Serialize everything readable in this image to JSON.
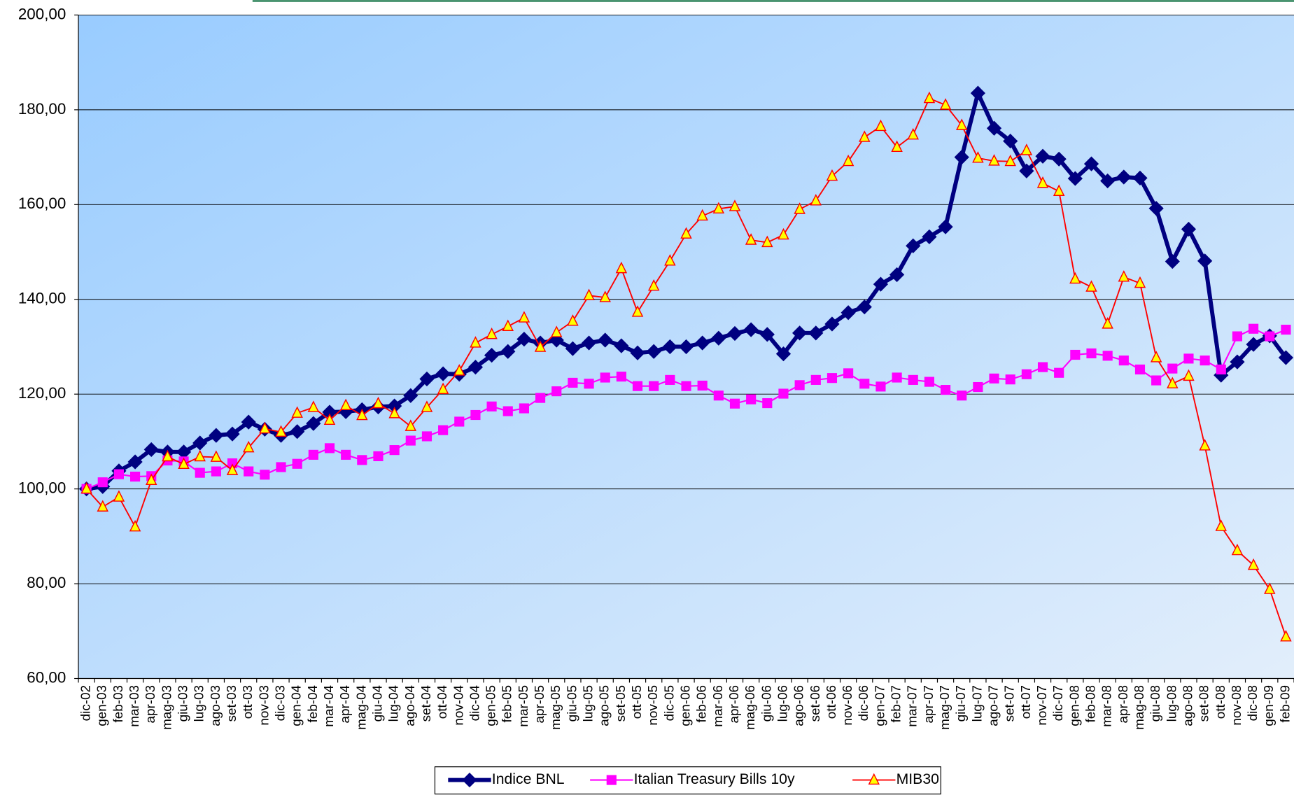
{
  "chart_data": {
    "type": "line",
    "categories": [
      "dic-02",
      "gen-03",
      "feb-03",
      "mar-03",
      "apr-03",
      "mag-03",
      "giu-03",
      "lug-03",
      "ago-03",
      "set-03",
      "ott-03",
      "nov-03",
      "dic-03",
      "gen-04",
      "feb-04",
      "mar-04",
      "apr-04",
      "mag-04",
      "giu-04",
      "lug-04",
      "ago-04",
      "set-04",
      "ott-04",
      "nov-04",
      "dic-04",
      "gen-05",
      "feb-05",
      "mar-05",
      "apr-05",
      "mag-05",
      "giu-05",
      "lug-05",
      "ago-05",
      "set-05",
      "ott-05",
      "nov-05",
      "dic-05",
      "gen-06",
      "feb-06",
      "mar-06",
      "apr-06",
      "mag-06",
      "giu-06",
      "lug-06",
      "ago-06",
      "set-06",
      "ott-06",
      "nov-06",
      "dic-06",
      "gen-07",
      "feb-07",
      "mar-07",
      "apr-07",
      "mag-07",
      "giu-07",
      "lug-07",
      "ago-07",
      "set-07",
      "ott-07",
      "nov-07",
      "dic-07",
      "gen-08",
      "feb-08",
      "mar-08",
      "apr-08",
      "mag-08",
      "giu-08",
      "lug-08",
      "ago-08",
      "set-08",
      "ott-08",
      "nov-08",
      "dic-08",
      "gen-09",
      "feb-09"
    ],
    "series": [
      {
        "name": "Indice BNL",
        "color": "#000080",
        "marker": "diamond",
        "values": [
          100,
          100.5,
          103.8,
          105.7,
          108.3,
          107.8,
          107.8,
          109.7,
          111.3,
          111.6,
          114.1,
          112.6,
          111.3,
          112.1,
          113.8,
          116.2,
          116.3,
          116.7,
          117.3,
          117.5,
          119.7,
          123.2,
          124.3,
          124.2,
          125.7,
          128.2,
          129.0,
          131.6,
          130.8,
          131.4,
          129.6,
          130.8,
          131.4,
          130.2,
          128.7,
          129.0,
          130.0,
          130.0,
          130.8,
          131.8,
          132.8,
          133.6,
          132.6,
          128.5,
          132.9,
          132.9,
          134.8,
          137.2,
          138.4,
          143.2,
          145.2,
          151.3,
          153.2,
          155.3,
          170.0,
          183.5,
          176.1,
          173.4,
          167.1,
          170.2,
          169.6,
          165.5,
          168.6,
          165.0,
          165.8,
          165.6,
          159.2,
          148.0,
          154.8,
          148.1,
          124.0,
          126.8,
          130.5,
          132.3,
          127.7
        ]
      },
      {
        "name": "Italian Treasury Bills 10y",
        "color": "#ff00ff",
        "marker": "square",
        "values": [
          100,
          101.4,
          103.1,
          102.6,
          102.7,
          106.0,
          105.8,
          103.4,
          103.7,
          105.4,
          103.7,
          103.0,
          104.6,
          105.3,
          107.2,
          108.6,
          107.2,
          106.1,
          106.9,
          108.2,
          110.2,
          111.1,
          112.4,
          114.2,
          115.6,
          117.4,
          116.4,
          117.0,
          119.2,
          120.6,
          122.4,
          122.2,
          123.5,
          123.7,
          121.7,
          121.7,
          123.0,
          121.7,
          121.8,
          119.7,
          118.0,
          118.9,
          118.1,
          120.1,
          121.9,
          123.0,
          123.4,
          124.4,
          122.2,
          121.6,
          123.5,
          123.0,
          122.6,
          120.9,
          119.7,
          121.5,
          123.3,
          123.1,
          124.2,
          125.7,
          124.5,
          128.3,
          128.6,
          128.1,
          127.1,
          125.2,
          122.9,
          125.4,
          127.5,
          127.1,
          125.2,
          132.2,
          133.8,
          132.2,
          133.6
        ]
      },
      {
        "name": "MIB30",
        "color": "#ff0000",
        "marker": "triangle",
        "marker_fill": "#ffff00",
        "values": [
          100,
          96.2,
          98.3,
          92.0,
          101.8,
          106.8,
          105.2,
          106.8,
          106.7,
          103.9,
          108.7,
          112.7,
          112.0,
          116.0,
          117.2,
          114.5,
          117.6,
          115.5,
          118.0,
          115.9,
          113.2,
          117.2,
          121.0,
          124.9,
          130.8,
          132.6,
          134.3,
          136.1,
          129.9,
          133.0,
          135.4,
          140.8,
          140.4,
          146.5,
          137.3,
          142.8,
          148.1,
          153.8,
          157.6,
          159.1,
          159.6,
          152.5,
          152.0,
          153.6,
          159.0,
          160.8,
          166.0,
          169.1,
          174.2,
          176.5,
          172.1,
          174.7,
          182.4,
          181.0,
          176.7,
          169.8,
          169.2,
          169.1,
          171.4,
          164.5,
          162.8,
          144.3,
          142.6,
          134.8,
          144.7,
          143.4,
          127.7,
          122.2,
          123.8,
          109.1,
          92.1,
          87.0,
          83.9,
          78.8,
          68.8
        ]
      }
    ],
    "ylim": [
      60,
      200
    ],
    "yticks": [
      {
        "value": 60,
        "label": "60,00"
      },
      {
        "value": 80,
        "label": "80,00"
      },
      {
        "value": 100,
        "label": "100,00"
      },
      {
        "value": 120,
        "label": "120,00"
      },
      {
        "value": 140,
        "label": "140,00"
      },
      {
        "value": 160,
        "label": "160,00"
      },
      {
        "value": 180,
        "label": "180,00"
      },
      {
        "value": 200,
        "label": "200,00"
      }
    ],
    "grid": true,
    "legend": "bottom"
  }
}
